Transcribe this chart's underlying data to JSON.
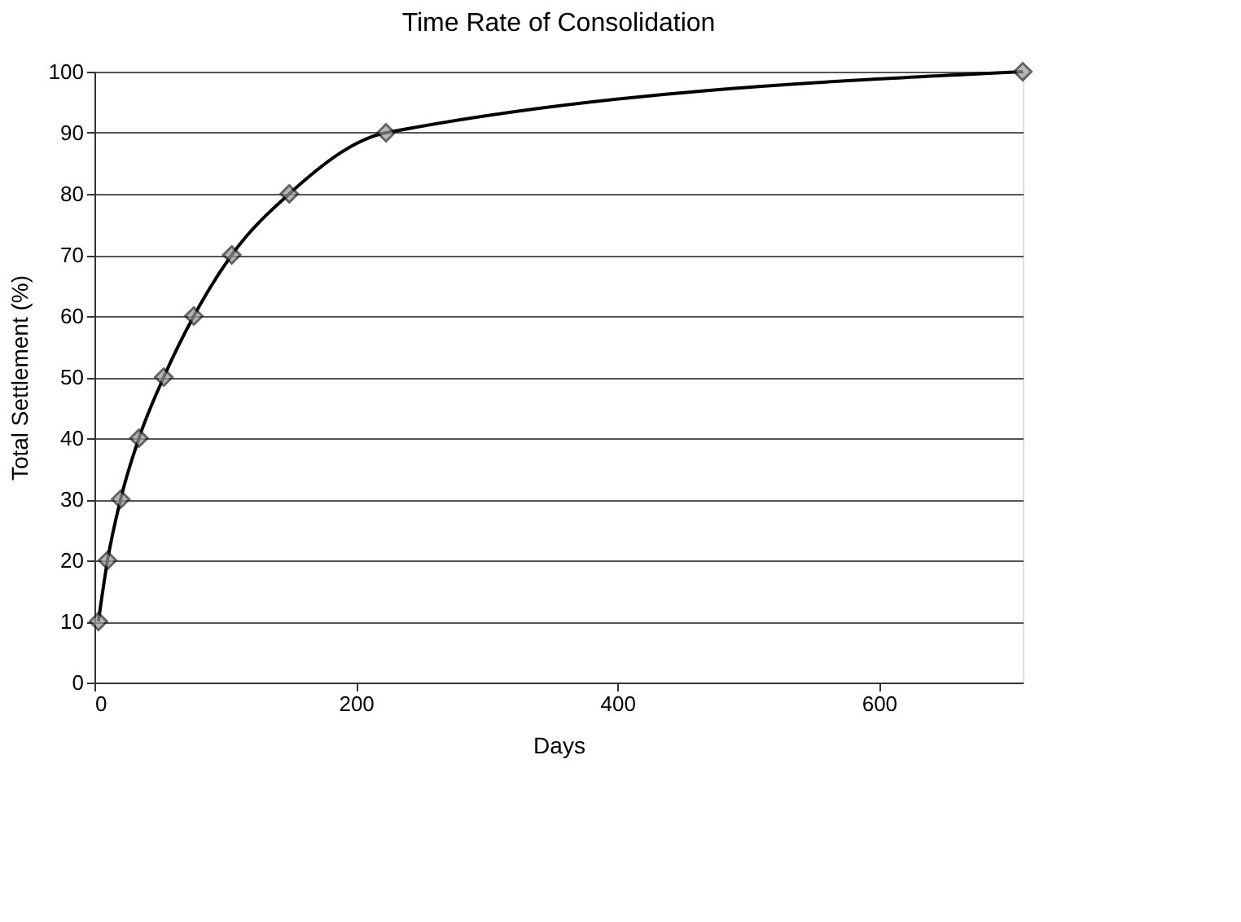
{
  "chart_data": {
    "type": "line",
    "title": "Time Rate of Consolidation",
    "xlabel": "Days",
    "ylabel": "Total Settlement (%)",
    "x": [
      3,
      10,
      20,
      34,
      53,
      76,
      105,
      149,
      223,
      710
    ],
    "series": [
      {
        "color": "#000000",
        "values": [
          10,
          20,
          30,
          40,
          50,
          60,
          70,
          80,
          90,
          100
        ]
      }
    ],
    "xlim": [
      0,
      710
    ],
    "xticks": [
      0,
      200,
      400,
      600
    ],
    "ylim": [
      0,
      100
    ],
    "yticks": [
      0,
      10,
      20,
      30,
      40,
      50,
      60,
      70,
      80,
      90,
      100
    ],
    "grid": "y",
    "marker": "diamond",
    "line_style": "solid",
    "legend": false
  }
}
